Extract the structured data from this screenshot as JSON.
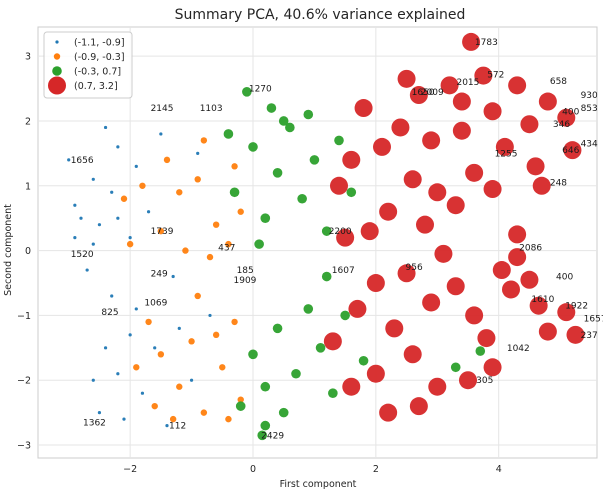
{
  "chart_data": {
    "type": "scatter",
    "title": "Summary PCA, 40.6% variance explained",
    "xlabel": "First component",
    "ylabel": "Second component",
    "xlim": [
      -3.5,
      5.6
    ],
    "ylim": [
      -3.2,
      3.45
    ],
    "xticks": [
      -2,
      0,
      2,
      4
    ],
    "yticks": [
      -3,
      -2,
      -1,
      0,
      1,
      2,
      3
    ],
    "grid": true,
    "legend_position": "top-left",
    "series": [
      {
        "name": "(-1.1, -0.9]",
        "color": "#1f77b4",
        "size": 1.6,
        "points": [
          {
            "x": -2.9,
            "y": 0.7
          },
          {
            "x": -2.8,
            "y": 0.5
          },
          {
            "x": -3.0,
            "y": 1.4
          },
          {
            "x": -2.6,
            "y": 1.1
          },
          {
            "x": -2.5,
            "y": 0.4
          },
          {
            "x": -2.3,
            "y": 0.9
          },
          {
            "x": -2.2,
            "y": 1.6
          },
          {
            "x": -2.0,
            "y": 0.2
          },
          {
            "x": -1.9,
            "y": 1.3
          },
          {
            "x": -1.7,
            "y": 0.6
          },
          {
            "x": -2.7,
            "y": -0.3
          },
          {
            "x": -2.4,
            "y": 1.9
          },
          {
            "x": -2.9,
            "y": 0.2
          },
          {
            "x": -2.6,
            "y": 0.1
          },
          {
            "x": -2.2,
            "y": 0.5
          },
          {
            "x": -1.5,
            "y": 1.8
          },
          {
            "x": -2.5,
            "y": -2.5
          },
          {
            "x": -2.2,
            "y": -1.9
          },
          {
            "x": -2.0,
            "y": -1.3
          },
          {
            "x": -1.8,
            "y": -2.2
          },
          {
            "x": -1.6,
            "y": -1.5
          },
          {
            "x": -1.4,
            "y": -2.7
          },
          {
            "x": -2.4,
            "y": -1.5
          },
          {
            "x": -2.6,
            "y": -2.0
          },
          {
            "x": -1.9,
            "y": -0.9
          },
          {
            "x": -1.2,
            "y": -1.2
          },
          {
            "x": -1.0,
            "y": -2.0
          },
          {
            "x": -2.1,
            "y": -2.6
          },
          {
            "x": -0.7,
            "y": -1.0
          },
          {
            "x": -1.3,
            "y": -0.4
          },
          {
            "x": -2.3,
            "y": -0.7
          },
          {
            "x": -0.9,
            "y": 1.5
          }
        ]
      },
      {
        "name": "(-0.9, -0.3]",
        "color": "#ff7f0e",
        "size": 3.2,
        "points": [
          {
            "x": -2.1,
            "y": 0.8
          },
          {
            "x": -1.8,
            "y": 1.0
          },
          {
            "x": -1.5,
            "y": 0.3
          },
          {
            "x": -1.2,
            "y": 0.9
          },
          {
            "x": -0.9,
            "y": 1.1
          },
          {
            "x": -0.6,
            "y": 0.4
          },
          {
            "x": -1.4,
            "y": 1.4
          },
          {
            "x": -0.8,
            "y": 1.7
          },
          {
            "x": -0.4,
            "y": 0.1
          },
          {
            "x": -1.1,
            "y": 0.0
          },
          {
            "x": -0.7,
            "y": -0.1
          },
          {
            "x": -0.3,
            "y": 1.3
          },
          {
            "x": -1.7,
            "y": -1.1
          },
          {
            "x": -1.5,
            "y": -1.6
          },
          {
            "x": -1.2,
            "y": -2.1
          },
          {
            "x": -1.0,
            "y": -1.4
          },
          {
            "x": -0.8,
            "y": -2.5
          },
          {
            "x": -0.5,
            "y": -1.8
          },
          {
            "x": -0.3,
            "y": -1.1
          },
          {
            "x": -0.2,
            "y": -2.3
          },
          {
            "x": -1.9,
            "y": -1.8
          },
          {
            "x": -1.3,
            "y": -2.6
          },
          {
            "x": -0.6,
            "y": -1.3
          },
          {
            "x": -1.6,
            "y": -2.4
          },
          {
            "x": -0.9,
            "y": -0.7
          },
          {
            "x": -0.4,
            "y": -2.6
          },
          {
            "x": -2.0,
            "y": 0.1
          },
          {
            "x": -0.2,
            "y": 0.6
          }
        ]
      },
      {
        "name": "(-0.3, 0.7]",
        "color": "#2ca02c",
        "size": 4.8,
        "points": [
          {
            "x": -0.3,
            "y": 0.9
          },
          {
            "x": 0.0,
            "y": 1.6
          },
          {
            "x": 0.2,
            "y": 0.5
          },
          {
            "x": 0.4,
            "y": 1.2
          },
          {
            "x": 0.6,
            "y": 1.9
          },
          {
            "x": 0.8,
            "y": 0.8
          },
          {
            "x": 1.0,
            "y": 1.4
          },
          {
            "x": 1.2,
            "y": 0.3
          },
          {
            "x": -0.1,
            "y": 2.45
          },
          {
            "x": 0.5,
            "y": 2.0
          },
          {
            "x": 1.4,
            "y": 1.7
          },
          {
            "x": 0.1,
            "y": 0.1
          },
          {
            "x": 1.6,
            "y": 0.9
          },
          {
            "x": -0.4,
            "y": 1.8
          },
          {
            "x": 0.3,
            "y": 2.2
          },
          {
            "x": 0.9,
            "y": 2.1
          },
          {
            "x": 0.0,
            "y": -1.6
          },
          {
            "x": 0.2,
            "y": -2.1
          },
          {
            "x": 0.4,
            "y": -1.2
          },
          {
            "x": 0.7,
            "y": -1.9
          },
          {
            "x": 0.9,
            "y": -0.9
          },
          {
            "x": 1.1,
            "y": -1.5
          },
          {
            "x": 1.3,
            "y": -2.2
          },
          {
            "x": 0.2,
            "y": -2.7
          },
          {
            "x": 0.15,
            "y": -2.85
          },
          {
            "x": -0.2,
            "y": -2.4
          },
          {
            "x": 1.5,
            "y": -1.0
          },
          {
            "x": 1.2,
            "y": -0.4
          },
          {
            "x": 0.5,
            "y": -2.5
          },
          {
            "x": 1.8,
            "y": -1.7
          },
          {
            "x": 3.7,
            "y": -1.55
          },
          {
            "x": 3.3,
            "y": -1.8
          }
        ]
      },
      {
        "name": "(0.7, 3.2]",
        "color": "#d62728",
        "size": 9.0,
        "points": [
          {
            "x": 3.55,
            "y": 3.22
          },
          {
            "x": 3.75,
            "y": 2.7
          },
          {
            "x": 3.2,
            "y": 2.55
          },
          {
            "x": 4.3,
            "y": 2.55
          },
          {
            "x": 4.8,
            "y": 2.3
          },
          {
            "x": 5.1,
            "y": 2.05
          },
          {
            "x": 4.5,
            "y": 1.95
          },
          {
            "x": 3.9,
            "y": 2.15
          },
          {
            "x": 2.7,
            "y": 2.4
          },
          {
            "x": 2.4,
            "y": 1.9
          },
          {
            "x": 2.9,
            "y": 1.7
          },
          {
            "x": 3.4,
            "y": 1.85
          },
          {
            "x": 4.1,
            "y": 1.6
          },
          {
            "x": 5.2,
            "y": 1.55
          },
          {
            "x": 4.6,
            "y": 1.3
          },
          {
            "x": 3.6,
            "y": 1.2
          },
          {
            "x": 2.6,
            "y": 1.1
          },
          {
            "x": 2.1,
            "y": 1.6
          },
          {
            "x": 1.8,
            "y": 2.2
          },
          {
            "x": 3.0,
            "y": 0.9
          },
          {
            "x": 3.9,
            "y": 0.95
          },
          {
            "x": 4.7,
            "y": 1.0
          },
          {
            "x": 2.2,
            "y": 0.6
          },
          {
            "x": 1.9,
            "y": 0.3
          },
          {
            "x": 2.8,
            "y": 0.4
          },
          {
            "x": 3.3,
            "y": 0.7
          },
          {
            "x": 1.5,
            "y": 0.2
          },
          {
            "x": 1.4,
            "y": 1.0
          },
          {
            "x": 4.3,
            "y": 0.25
          },
          {
            "x": 3.4,
            "y": 2.3
          },
          {
            "x": 1.6,
            "y": 1.4
          },
          {
            "x": 2.5,
            "y": 2.65
          },
          {
            "x": 4.3,
            "y": -0.1
          },
          {
            "x": 3.1,
            "y": -0.05
          },
          {
            "x": 2.5,
            "y": -0.35
          },
          {
            "x": 4.05,
            "y": -0.3
          },
          {
            "x": 2.0,
            "y": -0.5
          },
          {
            "x": 1.7,
            "y": -0.9
          },
          {
            "x": 2.3,
            "y": -1.2
          },
          {
            "x": 2.9,
            "y": -0.8
          },
          {
            "x": 3.6,
            "y": -1.0
          },
          {
            "x": 4.2,
            "y": -0.6
          },
          {
            "x": 4.65,
            "y": -0.85
          },
          {
            "x": 5.1,
            "y": -0.95
          },
          {
            "x": 5.25,
            "y": -1.3
          },
          {
            "x": 4.8,
            "y": -1.25
          },
          {
            "x": 3.8,
            "y": -1.35
          },
          {
            "x": 2.6,
            "y": -1.6
          },
          {
            "x": 2.0,
            "y": -1.9
          },
          {
            "x": 1.6,
            "y": -2.1
          },
          {
            "x": 2.2,
            "y": -2.5
          },
          {
            "x": 3.0,
            "y": -2.1
          },
          {
            "x": 3.5,
            "y": -2.0
          },
          {
            "x": 3.9,
            "y": -1.8
          },
          {
            "x": 1.3,
            "y": -1.4
          },
          {
            "x": 2.7,
            "y": -2.4
          },
          {
            "x": 4.5,
            "y": -0.45
          },
          {
            "x": 3.3,
            "y": -0.55
          }
        ]
      }
    ],
    "point_labels": [
      {
        "text": "1783",
        "x": 3.58,
        "y": 3.22
      },
      {
        "text": "572",
        "x": 3.78,
        "y": 2.72
      },
      {
        "text": "2015",
        "x": 3.28,
        "y": 2.6
      },
      {
        "text": "658",
        "x": 4.8,
        "y": 2.62
      },
      {
        "text": "930",
        "x": 5.3,
        "y": 2.4
      },
      {
        "text": "853",
        "x": 5.3,
        "y": 2.2
      },
      {
        "text": "400",
        "x": 5.0,
        "y": 2.15
      },
      {
        "text": "346",
        "x": 4.85,
        "y": 1.95
      },
      {
        "text": "434",
        "x": 5.3,
        "y": 1.65
      },
      {
        "text": "646",
        "x": 5.0,
        "y": 1.55
      },
      {
        "text": "248",
        "x": 4.8,
        "y": 1.05
      },
      {
        "text": "1255",
        "x": 3.9,
        "y": 1.5
      },
      {
        "text": "1270",
        "x": -0.1,
        "y": 2.5
      },
      {
        "text": "2145",
        "x": -1.7,
        "y": 2.2
      },
      {
        "text": "1103",
        "x": -0.9,
        "y": 2.2
      },
      {
        "text": "2086",
        "x": 4.3,
        "y": 0.05
      },
      {
        "text": "400",
        "x": 4.9,
        "y": -0.4
      },
      {
        "text": "1922",
        "x": 5.05,
        "y": -0.85
      },
      {
        "text": "1657",
        "x": 5.35,
        "y": -1.05
      },
      {
        "text": "237",
        "x": 5.3,
        "y": -1.3
      },
      {
        "text": "1042",
        "x": 4.1,
        "y": -1.5
      },
      {
        "text": "1607",
        "x": 1.25,
        "y": -0.3
      },
      {
        "text": "956",
        "x": 2.45,
        "y": -0.25
      },
      {
        "text": "249",
        "x": -1.7,
        "y": -0.35
      },
      {
        "text": "185",
        "x": -0.3,
        "y": -0.3
      },
      {
        "text": "1909",
        "x": -0.35,
        "y": -0.45
      },
      {
        "text": "437",
        "x": -0.6,
        "y": 0.05
      },
      {
        "text": "1520",
        "x": -3.0,
        "y": -0.05
      },
      {
        "text": "825",
        "x": -2.5,
        "y": -0.95
      },
      {
        "text": "1069",
        "x": -1.8,
        "y": -0.8
      },
      {
        "text": "1362",
        "x": -2.8,
        "y": -2.65
      },
      {
        "text": "1656",
        "x": -3.0,
        "y": 1.4
      },
      {
        "text": "1739",
        "x": -1.7,
        "y": 0.3
      },
      {
        "text": "2429",
        "x": 0.1,
        "y": -2.85
      },
      {
        "text": "112",
        "x": -1.4,
        "y": -2.7
      },
      {
        "text": "2009",
        "x": 2.7,
        "y": 2.45
      },
      {
        "text": "1650",
        "x": 2.55,
        "y": 2.45
      },
      {
        "text": "2200",
        "x": 1.2,
        "y": 0.3
      },
      {
        "text": "305",
        "x": 3.6,
        "y": -2.0
      },
      {
        "text": "1610",
        "x": 4.5,
        "y": -0.75
      }
    ]
  }
}
